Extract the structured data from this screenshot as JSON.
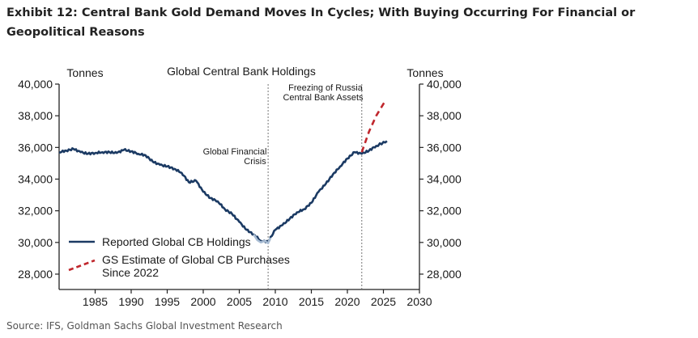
{
  "exhibit": {
    "title": "Exhibit 12: Central Bank Gold Demand Moves In Cycles; With Buying Occurring For Financial or Geopolitical Reasons",
    "source": "Source: IFS, Goldman Sachs Global Investment Research"
  },
  "colors": {
    "reported": "#1b3a63",
    "gfc_segment": "#a9bdd4",
    "estimate": "#c0272d",
    "axis": "#222222",
    "annotation_line": "#666666"
  },
  "chart_data": {
    "type": "line",
    "title": "Global Central Bank Holdings",
    "ylabel_left": "Tonnes",
    "ylabel_right": "Tonnes",
    "xlim": [
      1980,
      2030
    ],
    "ylim": [
      27500,
      40000
    ],
    "x_ticks": [
      1985,
      1990,
      1995,
      2000,
      2005,
      2010,
      2015,
      2020,
      2025,
      2030
    ],
    "y_ticks": [
      28000,
      30000,
      32000,
      34000,
      36000,
      38000,
      40000
    ],
    "y_tick_labels": [
      "28,000",
      "30,000",
      "32,000",
      "34,000",
      "36,000",
      "38,000",
      "40,000"
    ],
    "series": [
      {
        "name": "Reported Global CB Holdings",
        "style": "solid",
        "x": [
          1980,
          1981,
          1982,
          1983,
          1984,
          1985,
          1986,
          1987,
          1988,
          1989,
          1990,
          1991,
          1992,
          1993,
          1994,
          1995,
          1996,
          1997,
          1998,
          1999,
          2000,
          2001,
          2002,
          2003,
          2004,
          2005,
          2006,
          2007,
          2008,
          2009,
          2010,
          2011,
          2012,
          2013,
          2014,
          2015,
          2016,
          2017,
          2018,
          2019,
          2020,
          2021,
          2022,
          2023,
          2024,
          2025.5
        ],
        "y": [
          35700,
          35800,
          35900,
          35700,
          35600,
          35650,
          35700,
          35700,
          35650,
          35850,
          35750,
          35600,
          35500,
          35100,
          34900,
          34800,
          34650,
          34400,
          33800,
          33900,
          33200,
          32800,
          32600,
          32100,
          31800,
          31300,
          30800,
          30500,
          30100,
          30050,
          30800,
          31100,
          31500,
          31900,
          32100,
          32500,
          33200,
          33700,
          34300,
          34800,
          35300,
          35700,
          35600,
          35800,
          36100,
          36400
        ]
      },
      {
        "name": "Reported Global CB Holdings (Global Financial Crisis period)",
        "style": "solid-light",
        "x": [
          2007,
          2007.5,
          2008,
          2008.5,
          2009,
          2009.3
        ],
        "y": [
          30500,
          30150,
          30000,
          30100,
          29950,
          30300
        ]
      },
      {
        "name": "GS Estimate of Global CB Purchases Since 2022",
        "style": "dashed",
        "x": [
          2022,
          2023,
          2024,
          2025.2
        ],
        "y": [
          35700,
          37000,
          38000,
          38900
        ]
      }
    ],
    "annotations": [
      {
        "text": "Global Financial",
        "text2": "Crisis",
        "x": 2009
      },
      {
        "text": "Freezing of Russia",
        "text2": "Central Bank Assets",
        "x": 2022
      }
    ],
    "legend": [
      {
        "label": "Reported Global CB Holdings",
        "style": "solid"
      },
      {
        "label": "GS Estimate of Global CB Purchases",
        "label2": "Since 2022",
        "style": "dashed"
      }
    ],
    "legend_position": "bottom-left"
  }
}
